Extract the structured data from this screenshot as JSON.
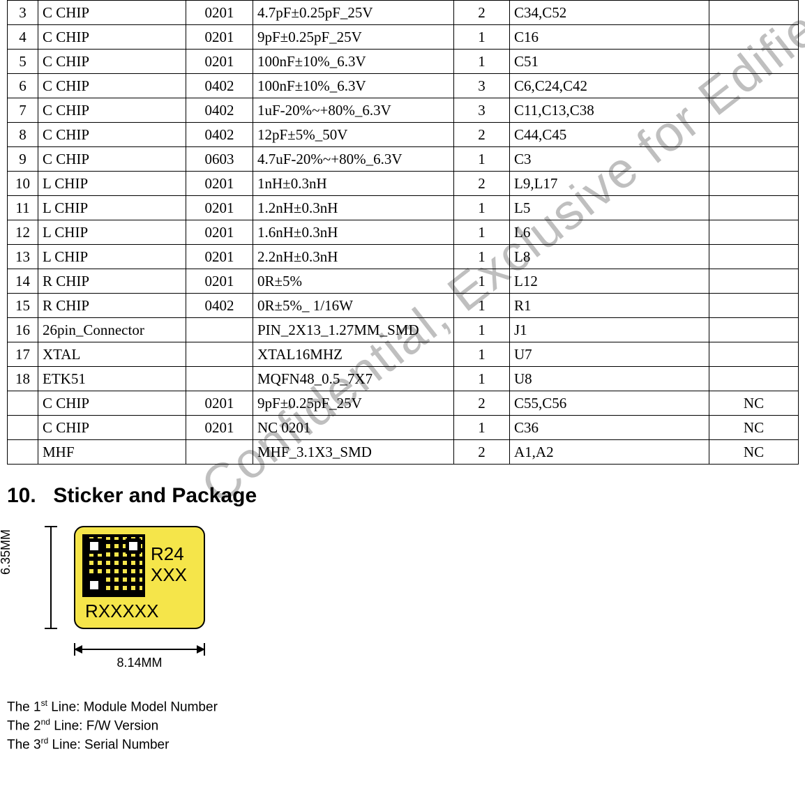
{
  "watermark_text": "Confidential, Exclusive for Edifier",
  "table": {
    "columns": {
      "count": 7
    },
    "rows": [
      {
        "n": "3",
        "part": "C CHIP",
        "pkg": "0201",
        "spec": "4.7pF±0.25pF_25V",
        "qty": "2",
        "refs": "C34,C52",
        "note": ""
      },
      {
        "n": "4",
        "part": "C CHIP",
        "pkg": "0201",
        "spec": "9pF±0.25pF_25V",
        "qty": "1",
        "refs": "C16",
        "note": ""
      },
      {
        "n": "5",
        "part": "C CHIP",
        "pkg": "0201",
        "spec": "100nF±10%_6.3V",
        "qty": "1",
        "refs": "C51",
        "note": ""
      },
      {
        "n": "6",
        "part": "C CHIP",
        "pkg": "0402",
        "spec": "100nF±10%_6.3V",
        "qty": "3",
        "refs": "C6,C24,C42",
        "note": ""
      },
      {
        "n": "7",
        "part": "C CHIP",
        "pkg": "0402",
        "spec": "1uF-20%~+80%_6.3V",
        "qty": "3",
        "refs": "C11,C13,C38",
        "note": ""
      },
      {
        "n": "8",
        "part": "C CHIP",
        "pkg": "0402",
        "spec": "12pF±5%_50V",
        "qty": "2",
        "refs": "C44,C45",
        "note": ""
      },
      {
        "n": "9",
        "part": "C CHIP",
        "pkg": "0603",
        "spec": "4.7uF-20%~+80%_6.3V",
        "qty": "1",
        "refs": "C3",
        "note": ""
      },
      {
        "n": "10",
        "part": "L CHIP",
        "pkg": "0201",
        "spec": "1nH±0.3nH",
        "qty": "2",
        "refs": "L9,L17",
        "note": ""
      },
      {
        "n": "11",
        "part": "L CHIP",
        "pkg": "0201",
        "spec": "1.2nH±0.3nH",
        "qty": "1",
        "refs": "L5",
        "note": ""
      },
      {
        "n": "12",
        "part": "L CHIP",
        "pkg": "0201",
        "spec": "1.6nH±0.3nH",
        "qty": "1",
        "refs": "L6",
        "note": ""
      },
      {
        "n": "13",
        "part": "L CHIP",
        "pkg": "0201",
        "spec": "2.2nH±0.3nH",
        "qty": "1",
        "refs": "L8",
        "note": ""
      },
      {
        "n": "14",
        "part": "R CHIP",
        "pkg": "0201",
        "spec": "0R±5%",
        "qty": "1",
        "refs": "L12",
        "note": ""
      },
      {
        "n": "15",
        "part": "R CHIP",
        "pkg": "0402",
        "spec": "0R±5%_ 1/16W",
        "qty": "1",
        "refs": "R1",
        "note": ""
      },
      {
        "n": "16",
        "part": "26pin_Connector",
        "pkg": "",
        "spec": "PIN_2X13_1.27MM_SMD",
        "qty": "1",
        "refs": "J1",
        "note": ""
      },
      {
        "n": "17",
        "part": "XTAL",
        "pkg": "",
        "spec": "XTAL16MHZ",
        "qty": "1",
        "refs": "U7",
        "note": ""
      },
      {
        "n": "18",
        "part": "ETK51",
        "pkg": "",
        "spec": "MQFN48_0.5_7X7",
        "qty": "1",
        "refs": "U8",
        "note": ""
      },
      {
        "n": "",
        "part": "C CHIP",
        "pkg": "0201",
        "spec": "9pF±0.25pF_25V",
        "qty": "2",
        "refs": "C55,C56",
        "note": "NC"
      },
      {
        "n": "",
        "part": "C CHIP",
        "pkg": "0201",
        "spec": "NC 0201",
        "qty": "1",
        "refs": "C36",
        "note": "NC"
      },
      {
        "n": "",
        "part": "MHF",
        "pkg": "",
        "spec": "MHF_3.1X3_SMD",
        "qty": "2",
        "refs": "A1,A2",
        "note": "NC"
      }
    ]
  },
  "section": {
    "number": "10.",
    "title": "Sticker and Package"
  },
  "sticker": {
    "height_label": "6.35MM",
    "width_label": "8.14MM",
    "line1": "R24",
    "line2": "XXX",
    "serial": "RXXXXX",
    "bg_color": "#f5e54a",
    "border_color": "#000000",
    "border_radius_px": 14
  },
  "legend": {
    "l1_prefix": "The 1",
    "l1_sup": "st",
    "l1_rest": " Line: Module Model Number",
    "l2_prefix": "The 2",
    "l2_sup": "nd",
    "l2_rest": " Line: F/W Version",
    "l3_prefix": "The 3",
    "l3_sup": "rd",
    "l3_rest": " Line: Serial Number"
  },
  "colors": {
    "page_bg": "#ffffff",
    "text": "#000000",
    "table_border": "#000000",
    "watermark": "#bfbfbf"
  },
  "fonts": {
    "table_pt": 16,
    "heading_pt": 22,
    "body_pt": 14
  }
}
